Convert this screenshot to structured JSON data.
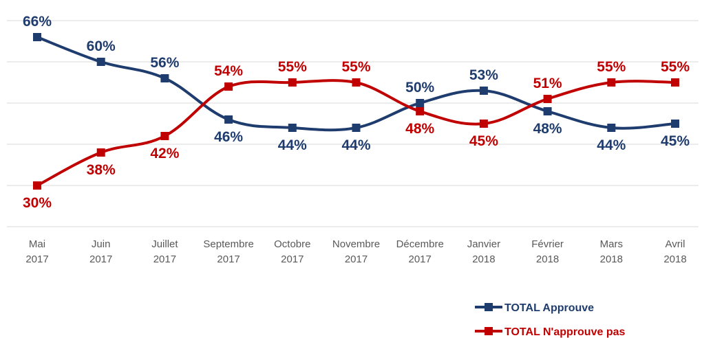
{
  "chart_data": {
    "type": "line",
    "categories": [
      [
        "Mai",
        "2017"
      ],
      [
        "Juin",
        "2017"
      ],
      [
        "Juillet",
        "2017"
      ],
      [
        "Septembre",
        "2017"
      ],
      [
        "Octobre",
        "2017"
      ],
      [
        "Novembre",
        "2017"
      ],
      [
        "Décembre",
        "2017"
      ],
      [
        "Janvier",
        "2018"
      ],
      [
        "Février",
        "2018"
      ],
      [
        "Mars",
        "2018"
      ],
      [
        "Avril",
        "2018"
      ]
    ],
    "series": [
      {
        "name": "TOTAL Approuve",
        "color": "#1f3c6e",
        "marker": "square",
        "values": [
          66,
          60,
          56,
          46,
          44,
          44,
          50,
          53,
          48,
          44,
          45
        ],
        "labels": [
          "66%",
          "60%",
          "56%",
          "46%",
          "44%",
          "44%",
          "50%",
          "53%",
          "48%",
          "44%",
          "45%"
        ],
        "label_position": [
          "above",
          "above",
          "above",
          "below",
          "below",
          "below",
          "above",
          "above",
          "below",
          "below",
          "below"
        ]
      },
      {
        "name": "TOTAL N'approuve pas",
        "color": "#c00000",
        "marker": "square",
        "values": [
          30,
          38,
          42,
          54,
          55,
          55,
          48,
          45,
          51,
          55,
          55
        ],
        "labels": [
          "30%",
          "38%",
          "42%",
          "54%",
          "55%",
          "55%",
          "48%",
          "45%",
          "51%",
          "55%",
          "55%"
        ],
        "label_position": [
          "below",
          "below",
          "below",
          "above",
          "above",
          "above",
          "below",
          "below",
          "above",
          "above",
          "above"
        ]
      }
    ],
    "ylim": [
      20,
      70
    ],
    "grid": true,
    "legend_position": "bottom-right",
    "line_style": "smooth",
    "title": "",
    "xlabel": "",
    "ylabel": ""
  }
}
